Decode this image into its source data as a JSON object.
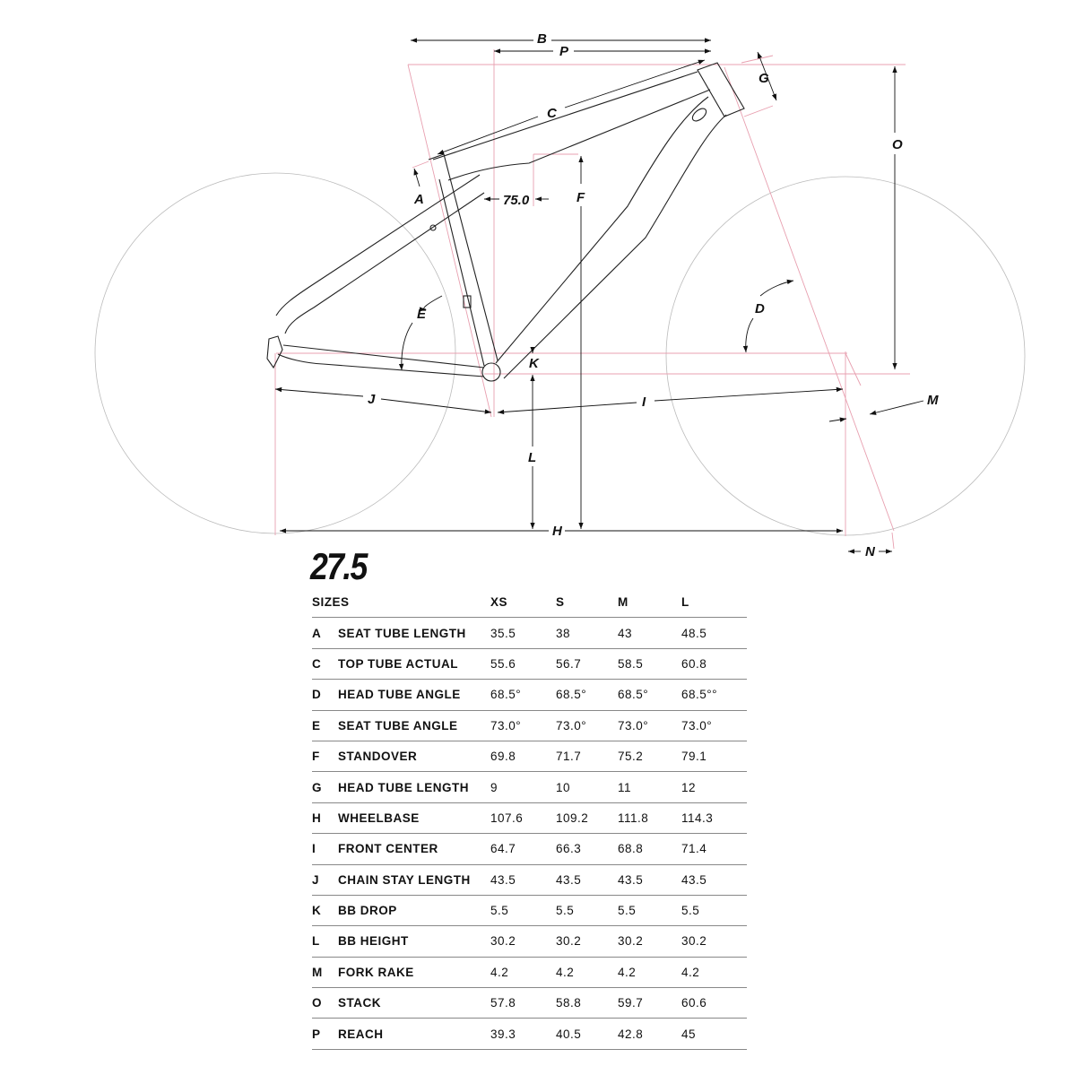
{
  "diagram": {
    "labels": {
      "B": "B",
      "P": "P",
      "C": "C",
      "G": "G",
      "O": "O",
      "A": "A",
      "F": "F",
      "E": "E",
      "D": "D",
      "K": "K",
      "J": "J",
      "I": "I",
      "M": "M",
      "L": "L",
      "H": "H",
      "N": "N",
      "angle": "75.0"
    },
    "colors": {
      "frame": "#222222",
      "guide": "#e8a0b0",
      "wheel": "#bbbbbb"
    }
  },
  "wheel_size": "27.5",
  "table": {
    "header": [
      "SIZES",
      "XS",
      "S",
      "M",
      "L"
    ],
    "rows": [
      {
        "key": "A",
        "name": "SEAT TUBE LENGTH",
        "values": [
          "35.5",
          "38",
          "43",
          "48.5"
        ]
      },
      {
        "key": "C",
        "name": "TOP TUBE ACTUAL",
        "values": [
          "55.6",
          "56.7",
          "58.5",
          "60.8"
        ]
      },
      {
        "key": "D",
        "name": "HEAD TUBE ANGLE",
        "values": [
          "68.5°",
          "68.5°",
          "68.5°",
          "68.5°°"
        ]
      },
      {
        "key": "E",
        "name": "SEAT TUBE ANGLE",
        "values": [
          "73.0°",
          "73.0°",
          "73.0°",
          "73.0°"
        ]
      },
      {
        "key": "F",
        "name": "STANDOVER",
        "values": [
          "69.8",
          "71.7",
          "75.2",
          "79.1"
        ]
      },
      {
        "key": "G",
        "name": "HEAD TUBE LENGTH",
        "values": [
          "9",
          "10",
          "11",
          "12"
        ]
      },
      {
        "key": "H",
        "name": "WHEELBASE",
        "values": [
          "107.6",
          "109.2",
          "111.8",
          "114.3"
        ]
      },
      {
        "key": "I",
        "name": "FRONT CENTER",
        "values": [
          "64.7",
          "66.3",
          "68.8",
          "71.4"
        ]
      },
      {
        "key": "J",
        "name": "CHAIN STAY LENGTH",
        "values": [
          "43.5",
          "43.5",
          "43.5",
          "43.5"
        ]
      },
      {
        "key": "K",
        "name": "BB DROP",
        "values": [
          "5.5",
          "5.5",
          "5.5",
          "5.5"
        ]
      },
      {
        "key": "L",
        "name": "BB HEIGHT",
        "values": [
          "30.2",
          "30.2",
          "30.2",
          "30.2"
        ]
      },
      {
        "key": "M",
        "name": "FORK RAKE",
        "values": [
          "4.2",
          "4.2",
          "4.2",
          "4.2"
        ]
      },
      {
        "key": "O",
        "name": "STACK",
        "values": [
          "57.8",
          "58.8",
          "59.7",
          "60.6"
        ]
      },
      {
        "key": "P",
        "name": "REACH",
        "values": [
          "39.3",
          "40.5",
          "42.8",
          "45"
        ]
      }
    ]
  }
}
